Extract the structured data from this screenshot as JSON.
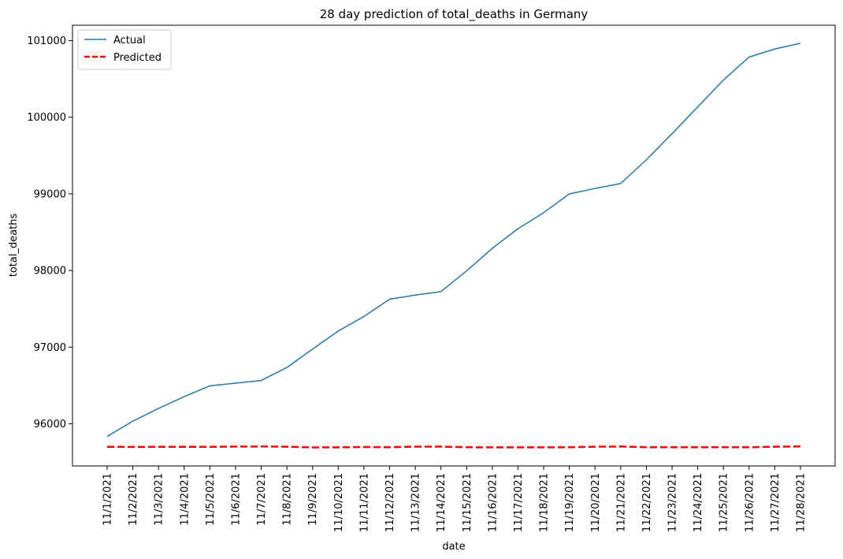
{
  "chart_data": {
    "type": "line",
    "title": "28 day prediction of total_deaths in Germany",
    "xlabel": "date",
    "ylabel": "total_deaths",
    "ylim": [
      95450,
      101200
    ],
    "yticks": [
      96000,
      97000,
      98000,
      99000,
      100000,
      101000
    ],
    "grid": false,
    "legend_position": "top-left",
    "categories": [
      "11/1/2021",
      "11/2/2021",
      "11/3/2021",
      "11/4/2021",
      "11/5/2021",
      "11/6/2021",
      "11/7/2021",
      "11/8/2021",
      "11/9/2021",
      "11/10/2021",
      "11/11/2021",
      "11/12/2021",
      "11/13/2021",
      "11/14/2021",
      "11/15/2021",
      "11/16/2021",
      "11/17/2021",
      "11/18/2021",
      "11/19/2021",
      "11/20/2021",
      "11/21/2021",
      "11/22/2021",
      "11/23/2021",
      "11/24/2021",
      "11/25/2021",
      "11/26/2021",
      "11/27/2021",
      "11/28/2021"
    ],
    "series": [
      {
        "name": "Actual",
        "color": "#1f77b4",
        "style": "solid",
        "values": [
          95835,
          96035,
          96200,
          96355,
          96495,
          96530,
          96565,
          96735,
          96975,
          97210,
          97400,
          97625,
          97680,
          97725,
          97995,
          98290,
          98545,
          98755,
          99000,
          99070,
          99135,
          99445,
          99785,
          100135,
          100485,
          100785,
          100890,
          100965
        ]
      },
      {
        "name": "Predicted",
        "color": "#ff0000",
        "style": "dashed",
        "values": [
          95700,
          95698,
          95699,
          95699,
          95700,
          95703,
          95704,
          95701,
          95692,
          95693,
          95697,
          95694,
          95702,
          95702,
          95694,
          95693,
          95693,
          95693,
          95694,
          95701,
          95704,
          95694,
          95694,
          95694,
          95694,
          95694,
          95701,
          95704
        ]
      }
    ]
  }
}
